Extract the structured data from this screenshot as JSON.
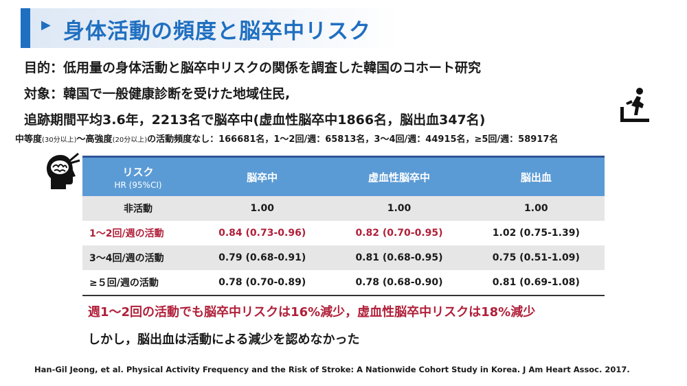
{
  "title": "身体活動の頻度と脳卒中リスク",
  "lines": {
    "purpose": "目的：低用量の身体活動と脳卒中リスクの関係を調査した韓国のコホート研究",
    "subjects": "対象：韓国で一般健康診断を受けた地域住民,",
    "followup": "追跡期間平均3.6年，2213名で脳卒中(虚血性脳卒中1866名，脳出血347名)"
  },
  "activity_counts": {
    "part1": "中等度",
    "part1_small": "(30分以上)",
    "part2": "〜高強度",
    "part2_small": "(20分以上)",
    "part3": "の活動頻度なし：166681名，1〜2回/週：65813名，3〜4回/週：44915名，≥5回/週：58917名"
  },
  "table": {
    "header": {
      "col0_line1": "リスク",
      "col0_line2": "HR (95%CI)",
      "col1": "脳卒中",
      "col2": "虚血性脳卒中",
      "col3": "脳出血"
    },
    "rows": [
      {
        "label": "非活動",
        "stroke": "1.00",
        "ischemic": "1.00",
        "hemorrhage": "1.00"
      },
      {
        "label": "1〜2回/週の活動",
        "stroke": "0.84 (0.73-0.96)",
        "ischemic": "0.82 (0.70-0.95)",
        "hemorrhage": "1.02 (0.75-1.39)"
      },
      {
        "label": "3〜4回/週の活動",
        "stroke": "0.79 (0.68-0.91)",
        "ischemic": "0.81 (0.68-0.95)",
        "hemorrhage": "0.75 (0.51-1.09)"
      },
      {
        "label": "≥５回/週の活動",
        "stroke": "0.78 (0.70-0.89)",
        "ischemic": "0.78 (0.68-0.90)",
        "hemorrhage": "0.81 (0.69-1.08)"
      }
    ]
  },
  "conclusions": {
    "line1": "週1〜2回の活動でも脳卒中リスクは16%減少，虚血性脳卒中リスクは18%減少",
    "line2": "しかし，脳出血は活動による減少を認めなかった"
  },
  "citation": "Han-Gil Jeong, et al. Physical Activity Frequency and the Risk of Stroke: A Nationwide Cohort Study in Korea. J Am Heart Assoc. 2017.",
  "colors": {
    "accent": "#1f6fc0",
    "table_header": "#5b9bd5",
    "highlight_red": "#b0203a",
    "alt_row": "#e7e6e6"
  },
  "icons": [
    "play-arrow-icon",
    "treadmill-runner-icon",
    "head-brain-icon"
  ]
}
